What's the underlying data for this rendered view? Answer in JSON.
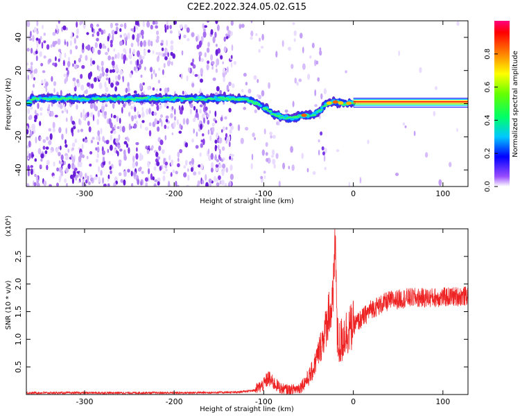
{
  "title": "C2E2.2022.324.05.02.G15",
  "chart_data": [
    {
      "type": "heatmap",
      "xlabel": "Height of straight line (km)",
      "ylabel": "Frequency (Hz)",
      "xlim": [
        -365,
        128
      ],
      "ylim": [
        -50,
        50
      ],
      "xticks": [
        -300,
        -200,
        -100,
        0,
        100
      ],
      "yticks": [
        -40,
        -20,
        0,
        20,
        40
      ],
      "colorbar": {
        "label": "Normalized spectral amplitude",
        "range": [
          0,
          1
        ],
        "ticks": [
          0.0,
          0.2,
          0.4,
          0.6,
          0.8
        ],
        "tick_labels": [
          "0.0",
          "0.2",
          "0.4",
          "0.6",
          "0.8"
        ],
        "colors": [
          "#ffffff",
          "#8000ff",
          "#0000ff",
          "#00ffff",
          "#00ff00",
          "#ffff00",
          "#ff8000",
          "#ff0000",
          "#ff0080"
        ]
      },
      "ridge": [
        {
          "x": -360,
          "y": 3
        },
        {
          "x": -300,
          "y": 3
        },
        {
          "x": -250,
          "y": 3
        },
        {
          "x": -200,
          "y": 3
        },
        {
          "x": -160,
          "y": 3
        },
        {
          "x": -130,
          "y": 3
        },
        {
          "x": -115,
          "y": 2
        },
        {
          "x": -100,
          "y": -2
        },
        {
          "x": -90,
          "y": -6
        },
        {
          "x": -80,
          "y": -8
        },
        {
          "x": -70,
          "y": -9
        },
        {
          "x": -55,
          "y": -7
        },
        {
          "x": -45,
          "y": -7
        },
        {
          "x": -37,
          "y": -4
        },
        {
          "x": -30,
          "y": 0
        },
        {
          "x": -20,
          "y": 1
        },
        {
          "x": -10,
          "y": 0
        },
        {
          "x": 0,
          "y": 0.5
        },
        {
          "x": 125,
          "y": 0.5
        }
      ]
    },
    {
      "type": "line",
      "xlabel": "Height of straight line (km)",
      "ylabel": "SNR (10 * v/v)",
      "y_scale_label": "(x10⁴)",
      "xlim": [
        -365,
        128
      ],
      "ylim": [
        0,
        3.0
      ],
      "xticks": [
        -300,
        -200,
        -100,
        0,
        100
      ],
      "yticks": [
        0.5,
        1.0,
        1.5,
        2.0,
        2.5
      ],
      "ytick_labels": [
        "0.5",
        "1.0",
        "1.5",
        "2.0",
        "2.5"
      ],
      "line_color": "#ee2222",
      "series": [
        {
          "x": [
            -365,
            -200,
            -130,
            -110,
            -100,
            -95,
            -90,
            -80,
            -70,
            -60,
            -50,
            -45,
            -40,
            -35,
            -30,
            -27,
            -25,
            -22,
            -20,
            -18,
            -15,
            -10,
            0,
            10,
            20,
            30,
            40,
            50,
            60,
            80,
            100,
            120,
            128
          ],
          "y": [
            0.03,
            0.03,
            0.04,
            0.08,
            0.18,
            0.3,
            0.22,
            0.1,
            0.08,
            0.12,
            0.3,
            0.45,
            0.7,
            0.95,
            1.25,
            1.55,
            1.45,
            1.9,
            2.9,
            1.0,
            0.9,
            1.1,
            1.25,
            1.38,
            1.55,
            1.62,
            1.7,
            1.72,
            1.75,
            1.75,
            1.76,
            1.78,
            1.78
          ]
        }
      ]
    }
  ]
}
